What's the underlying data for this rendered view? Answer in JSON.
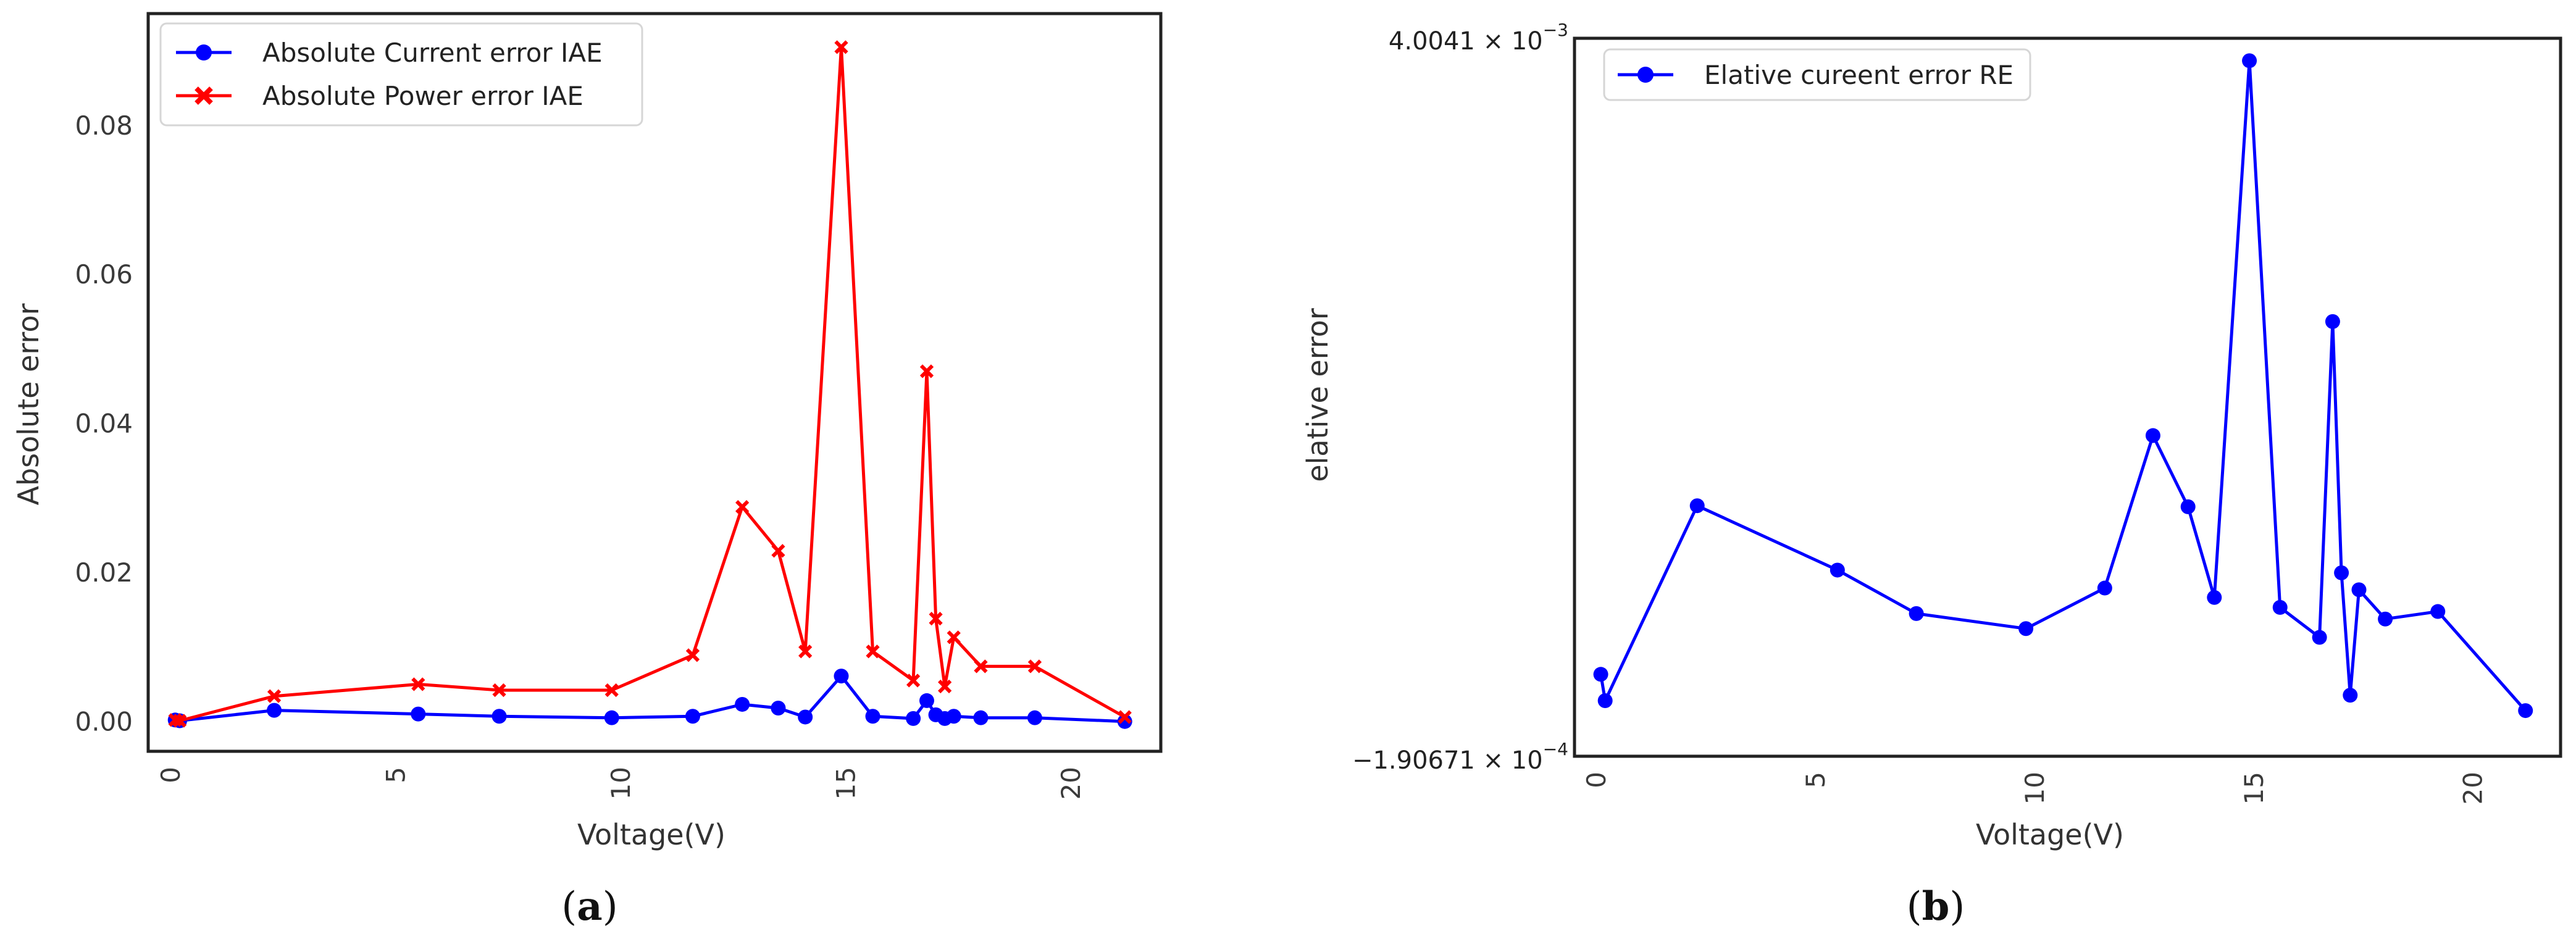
{
  "panels": [
    {
      "caption_open": "(",
      "caption_letter": "a",
      "caption_close": ")",
      "legend": [
        {
          "label": "Absolute Current error IAE",
          "color": "#0000ff",
          "marker": "circle"
        },
        {
          "label": "Absolute Power error IAE",
          "color": "#ff0000",
          "marker": "x"
        }
      ]
    },
    {
      "caption_open": "(",
      "caption_letter": "b",
      "caption_close": ")",
      "legend": [
        {
          "label": "Elative cureent error RE",
          "color": "#0000ff",
          "marker": "circle"
        }
      ],
      "y_top_label": {
        "base": "4.0041 × 10",
        "exp": "−3"
      },
      "y_bottom_label": {
        "base": "−1.90671 × 10",
        "exp": "−4"
      }
    }
  ],
  "chart_data": [
    {
      "type": "line",
      "title": "",
      "xlabel": "Voltage(V)",
      "ylabel": "Absolute error",
      "xlim": [
        -0.5,
        22
      ],
      "ylim": [
        -0.004,
        0.095
      ],
      "x_ticks": [
        0,
        5,
        10,
        15,
        20
      ],
      "y_ticks": [
        0.0,
        0.02,
        0.04,
        0.06,
        0.08
      ],
      "y_tick_labels": [
        "0.00",
        "0.02",
        "0.04",
        "0.06",
        "0.08"
      ],
      "grid": false,
      "legend_position": "top-left",
      "x": [
        0.1,
        0.2,
        2.3,
        5.5,
        7.3,
        9.8,
        11.6,
        12.7,
        13.5,
        14.1,
        14.9,
        15.6,
        16.5,
        16.8,
        17.0,
        17.2,
        17.4,
        18.0,
        19.2,
        21.2
      ],
      "series": [
        {
          "name": "Absolute Current error IAE",
          "color": "#0000ff",
          "marker": "circle",
          "values": [
            0.0002,
            0.0001,
            0.0015,
            0.001,
            0.0007,
            0.0005,
            0.0007,
            0.0023,
            0.0018,
            0.0006,
            0.0061,
            0.0007,
            0.0004,
            0.0028,
            0.0009,
            0.0004,
            0.0007,
            0.0005,
            0.0005,
            0.0
          ]
        },
        {
          "name": "Absolute Power error IAE",
          "color": "#ff0000",
          "marker": "x",
          "values": [
            0.0002,
            0.0001,
            0.0034,
            0.005,
            0.0042,
            0.0042,
            0.0089,
            0.0288,
            0.0229,
            0.0094,
            0.0905,
            0.0094,
            0.0055,
            0.047,
            0.0138,
            0.0047,
            0.0113,
            0.0074,
            0.0074,
            0.0006
          ]
        }
      ]
    },
    {
      "type": "line",
      "title": "",
      "xlabel": "Voltage(V)",
      "ylabel": "elative error",
      "xlim": [
        -0.5,
        22
      ],
      "ylim": [
        -0.000190671,
        0.0040041
      ],
      "x_ticks": [
        0,
        5,
        10,
        15,
        20
      ],
      "grid": false,
      "legend_position": "top-left",
      "x": [
        0.1,
        0.2,
        2.3,
        5.5,
        7.3,
        9.8,
        11.6,
        12.7,
        13.5,
        14.1,
        14.9,
        15.6,
        16.5,
        16.8,
        17.0,
        17.2,
        17.4,
        18.0,
        19.2,
        21.2
      ],
      "series": [
        {
          "name": "Elative cureent error RE",
          "color": "#0000ff",
          "marker": "circle",
          "values": [
            0.000288,
            0.000134,
            0.001273,
            0.000897,
            0.000643,
            0.000555,
            0.000792,
            0.001683,
            0.001267,
            0.000737,
            0.003873,
            0.000679,
            0.000504,
            0.002349,
            0.000881,
            0.000166,
            0.000782,
            0.000611,
            0.000655,
            7.6e-05
          ]
        }
      ]
    }
  ]
}
